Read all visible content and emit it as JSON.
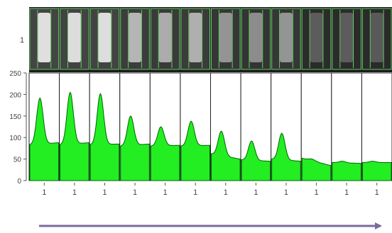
{
  "lane_label": "1",
  "y_axis": {
    "ticks": [
      "250",
      "200",
      "150",
      "100",
      "50",
      "0"
    ],
    "range": [
      0,
      250
    ]
  },
  "lane_tick_labels": [
    "1",
    "1",
    "1",
    "1",
    "1",
    "1",
    "1",
    "1",
    "1",
    "1",
    "1",
    "1"
  ],
  "lanes": [
    {
      "peak": 192,
      "baseline": 83,
      "tail": 88,
      "band_brightness": 0.92
    },
    {
      "peak": 205,
      "baseline": 83,
      "tail": 88,
      "band_brightness": 0.9
    },
    {
      "peak": 202,
      "baseline": 83,
      "tail": 85,
      "band_brightness": 0.9
    },
    {
      "peak": 150,
      "baseline": 80,
      "tail": 85,
      "band_brightness": 0.65
    },
    {
      "peak": 125,
      "baseline": 80,
      "tail": 82,
      "band_brightness": 0.6
    },
    {
      "peak": 138,
      "baseline": 80,
      "tail": 82,
      "band_brightness": 0.62
    },
    {
      "peak": 115,
      "baseline": 62,
      "tail": 50,
      "band_brightness": 0.45
    },
    {
      "peak": 92,
      "baseline": 48,
      "tail": 45,
      "band_brightness": 0.4
    },
    {
      "peak": 110,
      "baseline": 50,
      "tail": 45,
      "band_brightness": 0.45
    },
    {
      "peak": 50,
      "baseline": 52,
      "tail": 35,
      "band_brightness": 0.1
    },
    {
      "peak": 45,
      "baseline": 42,
      "tail": 40,
      "band_brightness": 0.1
    },
    {
      "peak": 45,
      "baseline": 42,
      "tail": 42,
      "band_brightness": 0.08
    }
  ],
  "colors": {
    "fill": "#22ee22",
    "outline": "#006600",
    "gel_border": "#66cc66",
    "arrow": "#7b6b9e"
  }
}
